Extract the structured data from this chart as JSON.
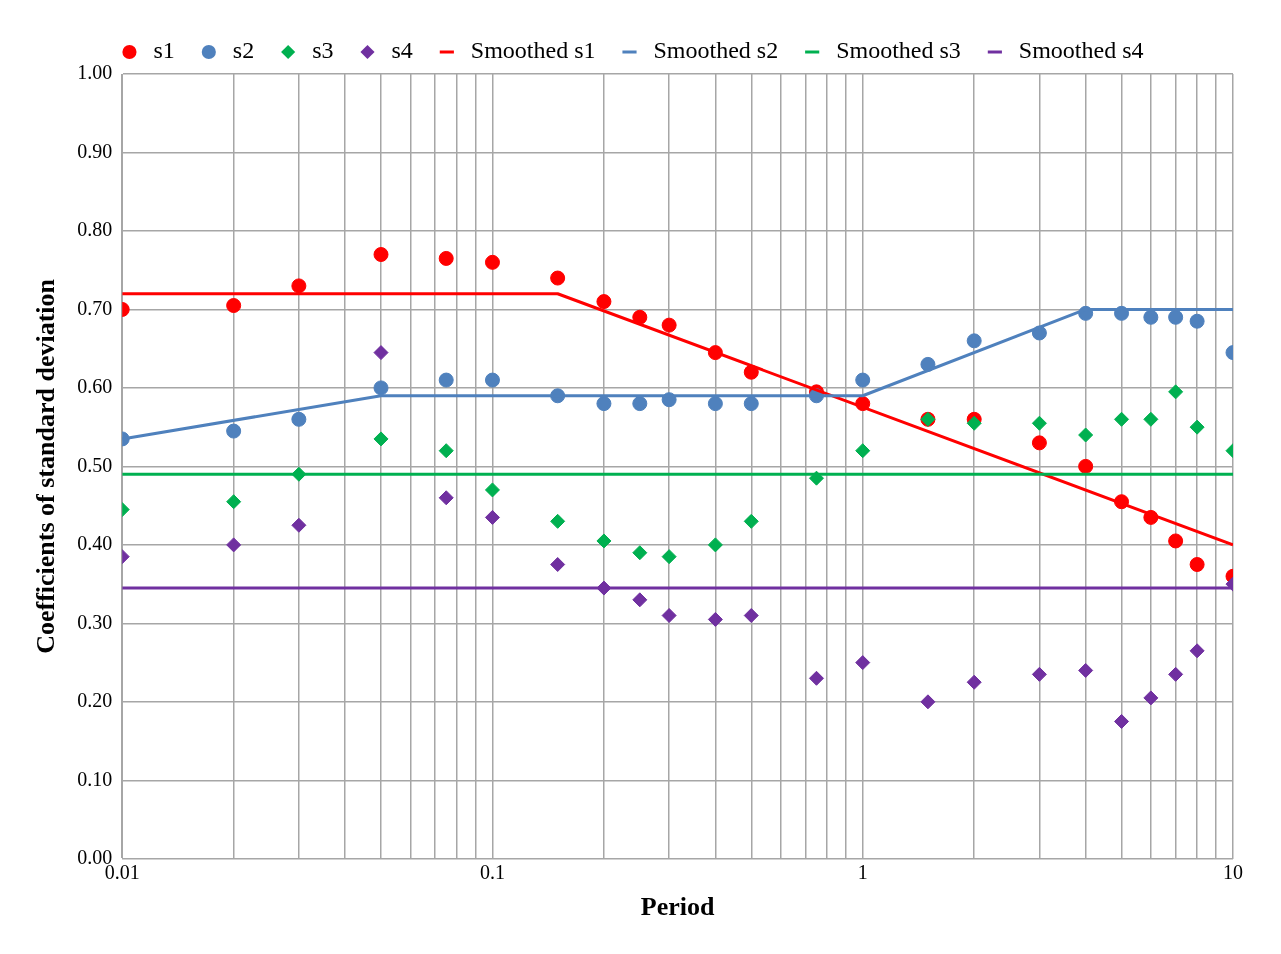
{
  "chart_data": {
    "type": "scatter",
    "xlabel": "Period",
    "ylabel": "Coefficients of standard deviation",
    "log": "x",
    "grid": true,
    "legend": "top",
    "x": [
      0.01,
      0.02,
      0.03,
      0.05,
      0.075,
      0.1,
      0.15,
      0.2,
      0.25,
      0.3,
      0.4,
      0.5,
      0.75,
      1,
      1.5,
      2,
      3,
      4,
      5,
      6,
      7,
      8,
      10
    ],
    "xlim": [
      0.01,
      10
    ],
    "xticks": [
      {
        "value": 0.01,
        "label": "0.01"
      },
      {
        "value": 0.02,
        "label": null
      },
      {
        "value": 0.03,
        "label": null
      },
      {
        "value": 0.04,
        "label": null
      },
      {
        "value": 0.05,
        "label": null
      },
      {
        "value": 0.06,
        "label": null
      },
      {
        "value": 0.07,
        "label": null
      },
      {
        "value": 0.08,
        "label": null
      },
      {
        "value": 0.09,
        "label": null
      },
      {
        "value": 0.1,
        "label": "0.1"
      },
      {
        "value": 0.2,
        "label": null
      },
      {
        "value": 0.3,
        "label": null
      },
      {
        "value": 0.4,
        "label": null
      },
      {
        "value": 0.5,
        "label": null
      },
      {
        "value": 0.6,
        "label": null
      },
      {
        "value": 0.7,
        "label": null
      },
      {
        "value": 0.8,
        "label": null
      },
      {
        "value": 0.9,
        "label": null
      },
      1,
      {
        "value": 2,
        "label": null
      },
      {
        "value": 3,
        "label": null
      },
      {
        "value": 4,
        "label": null
      },
      {
        "value": 5,
        "label": null
      },
      {
        "value": 6,
        "label": null
      },
      {
        "value": 7,
        "label": null
      },
      {
        "value": 8,
        "label": null
      },
      {
        "value": 9,
        "label": null
      },
      10
    ],
    "ylim": [
      0,
      1
    ],
    "yticks": [
      {
        "value": 0,
        "label": "0.00"
      },
      {
        "value": 0.1,
        "label": "0.10"
      },
      {
        "value": 0.2,
        "label": "0.20"
      },
      {
        "value": 0.3,
        "label": "0.30"
      },
      {
        "value": 0.4,
        "label": "0.40"
      },
      {
        "value": 0.5,
        "label": "0.50"
      },
      {
        "value": 0.6,
        "label": "0.60"
      },
      {
        "value": 0.7,
        "label": "0.70"
      },
      {
        "value": 0.8,
        "label": "0.80"
      },
      {
        "value": 0.9,
        "label": "0.90"
      },
      {
        "value": 1,
        "label": "1.00"
      }
    ],
    "series": [
      {
        "name": "s1",
        "marker": "circle",
        "color": "#ff0000",
        "values": [
          0.7,
          0.705,
          0.73,
          0.77,
          0.765,
          0.76,
          0.74,
          0.71,
          0.69,
          0.68,
          0.645,
          0.62,
          0.595,
          0.58,
          0.56,
          0.56,
          0.53,
          0.5,
          0.455,
          0.435,
          0.405,
          0.375,
          0.36
        ]
      },
      {
        "name": "s2",
        "marker": "circle",
        "color": "#4f81bd",
        "values": [
          0.535,
          0.545,
          0.56,
          0.6,
          0.61,
          0.61,
          0.59,
          0.58,
          0.58,
          0.585,
          0.58,
          0.58,
          0.59,
          0.61,
          0.63,
          0.66,
          0.67,
          0.695,
          0.695,
          0.69,
          0.69,
          0.685,
          0.645
        ]
      },
      {
        "name": "s3",
        "marker": "diamond",
        "color": "#00b050",
        "values": [
          0.445,
          0.455,
          0.49,
          0.535,
          0.52,
          0.47,
          0.43,
          0.405,
          0.39,
          0.385,
          0.4,
          0.43,
          0.485,
          0.52,
          0.56,
          0.555,
          0.555,
          0.54,
          0.56,
          0.56,
          0.595,
          0.55,
          0.52
        ]
      },
      {
        "name": "s4",
        "marker": "diamond",
        "color": "#7030a0",
        "values": [
          0.385,
          0.4,
          0.425,
          0.645,
          0.46,
          0.435,
          0.375,
          0.345,
          0.33,
          0.31,
          0.305,
          0.31,
          0.23,
          0.25,
          0.2,
          0.225,
          0.235,
          0.24,
          0.175,
          0.205,
          0.235,
          0.265,
          0.35
        ]
      },
      {
        "name": "Smoothed s1",
        "type": "line",
        "color": "#ff0000",
        "x": [
          0.01,
          0.15,
          10
        ],
        "values": [
          0.72,
          0.72,
          0.4
        ]
      },
      {
        "name": "Smoothed s2",
        "type": "line",
        "color": "#4f81bd",
        "x": [
          0.01,
          0.05,
          1,
          4,
          10
        ],
        "values": [
          0.535,
          0.59,
          0.59,
          0.7,
          0.7
        ]
      },
      {
        "name": "Smoothed s3",
        "type": "line",
        "color": "#00b050",
        "x": [
          0.01,
          10
        ],
        "values": [
          0.49,
          0.49
        ]
      },
      {
        "name": "Smoothed s4",
        "type": "line",
        "color": "#7030a0",
        "x": [
          0.01,
          10
        ],
        "values": [
          0.345,
          0.345
        ]
      }
    ]
  }
}
